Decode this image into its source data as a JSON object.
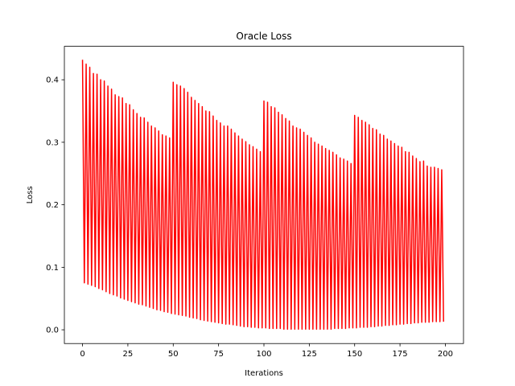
{
  "chart_data": {
    "type": "line",
    "title": "Oracle Loss",
    "xlabel": "Iterations",
    "ylabel": "Loss",
    "xlim": [
      -10,
      210
    ],
    "ylim": [
      -0.022,
      0.4535
    ],
    "xticks": [
      0,
      25,
      50,
      75,
      100,
      125,
      150,
      175,
      200
    ],
    "yticks": [
      0.0,
      0.1,
      0.2,
      0.3,
      0.4
    ],
    "ytick_labels": [
      "0.0",
      "0.1",
      "0.2",
      "0.3",
      "0.4"
    ],
    "grid": false,
    "legend": "none",
    "series": [
      {
        "color": "#ff0000",
        "x": [
          0,
          1,
          2,
          3,
          4,
          5,
          6,
          7,
          8,
          9,
          10,
          11,
          12,
          13,
          14,
          15,
          16,
          17,
          18,
          19,
          20,
          21,
          22,
          23,
          24,
          25,
          26,
          27,
          28,
          29,
          30,
          31,
          32,
          33,
          34,
          35,
          36,
          37,
          38,
          39,
          40,
          41,
          42,
          43,
          44,
          45,
          46,
          47,
          48,
          49,
          50,
          51,
          52,
          53,
          54,
          55,
          56,
          57,
          58,
          59,
          60,
          61,
          62,
          63,
          64,
          65,
          66,
          67,
          68,
          69,
          70,
          71,
          72,
          73,
          74,
          75,
          76,
          77,
          78,
          79,
          80,
          81,
          82,
          83,
          84,
          85,
          86,
          87,
          88,
          89,
          90,
          91,
          92,
          93,
          94,
          95,
          96,
          97,
          98,
          99,
          100,
          101,
          102,
          103,
          104,
          105,
          106,
          107,
          108,
          109,
          110,
          111,
          112,
          113,
          114,
          115,
          116,
          117,
          118,
          119,
          120,
          121,
          122,
          123,
          124,
          125,
          126,
          127,
          128,
          129,
          130,
          131,
          132,
          133,
          134,
          135,
          136,
          137,
          138,
          139,
          140,
          141,
          142,
          143,
          144,
          145,
          146,
          147,
          148,
          149,
          150,
          151,
          152,
          153,
          154,
          155,
          156,
          157,
          158,
          159,
          160,
          161,
          162,
          163,
          164,
          165,
          166,
          167,
          168,
          169,
          170,
          171,
          172,
          173,
          174,
          175,
          176,
          177,
          178,
          179,
          180,
          181,
          182,
          183,
          184,
          185,
          186,
          187,
          188,
          189,
          190,
          191,
          192,
          193,
          194,
          195,
          196,
          197,
          198,
          199
        ],
        "y": [
          0.432,
          0.075,
          0.425,
          0.073,
          0.42,
          0.071,
          0.41,
          0.069,
          0.409,
          0.066,
          0.4,
          0.064,
          0.398,
          0.061,
          0.39,
          0.058,
          0.385,
          0.056,
          0.376,
          0.054,
          0.373,
          0.051,
          0.371,
          0.049,
          0.362,
          0.047,
          0.36,
          0.045,
          0.352,
          0.043,
          0.346,
          0.041,
          0.34,
          0.04,
          0.339,
          0.038,
          0.332,
          0.036,
          0.326,
          0.034,
          0.323,
          0.032,
          0.318,
          0.031,
          0.312,
          0.029,
          0.31,
          0.028,
          0.307,
          0.026,
          0.396,
          0.025,
          0.392,
          0.024,
          0.39,
          0.023,
          0.386,
          0.022,
          0.38,
          0.02,
          0.372,
          0.019,
          0.367,
          0.018,
          0.362,
          0.016,
          0.357,
          0.015,
          0.35,
          0.014,
          0.349,
          0.013,
          0.342,
          0.012,
          0.335,
          0.011,
          0.331,
          0.01,
          0.326,
          0.009,
          0.326,
          0.009,
          0.321,
          0.008,
          0.315,
          0.007,
          0.31,
          0.006,
          0.305,
          0.005,
          0.301,
          0.005,
          0.296,
          0.004,
          0.293,
          0.004,
          0.289,
          0.003,
          0.285,
          0.003,
          0.366,
          0.003,
          0.364,
          0.002,
          0.357,
          0.002,
          0.355,
          0.002,
          0.348,
          0.002,
          0.344,
          0.001,
          0.338,
          0.001,
          0.334,
          0.001,
          0.326,
          0.001,
          0.323,
          0.001,
          0.321,
          0.001,
          0.316,
          0.001,
          0.311,
          0.001,
          0.307,
          0.001,
          0.3,
          0.001,
          0.297,
          0.001,
          0.294,
          0.001,
          0.29,
          0.001,
          0.287,
          0.001,
          0.284,
          0.002,
          0.28,
          0.002,
          0.275,
          0.002,
          0.273,
          0.002,
          0.27,
          0.003,
          0.266,
          0.003,
          0.343,
          0.003,
          0.34,
          0.004,
          0.335,
          0.004,
          0.332,
          0.004,
          0.328,
          0.005,
          0.322,
          0.005,
          0.32,
          0.006,
          0.313,
          0.006,
          0.311,
          0.007,
          0.305,
          0.007,
          0.302,
          0.008,
          0.298,
          0.008,
          0.294,
          0.009,
          0.292,
          0.009,
          0.285,
          0.01,
          0.284,
          0.01,
          0.278,
          0.011,
          0.274,
          0.011,
          0.269,
          0.012,
          0.27,
          0.012,
          0.262,
          0.012,
          0.26,
          0.013,
          0.26,
          0.013,
          0.258,
          0.013,
          0.256,
          0.013
        ]
      }
    ]
  }
}
